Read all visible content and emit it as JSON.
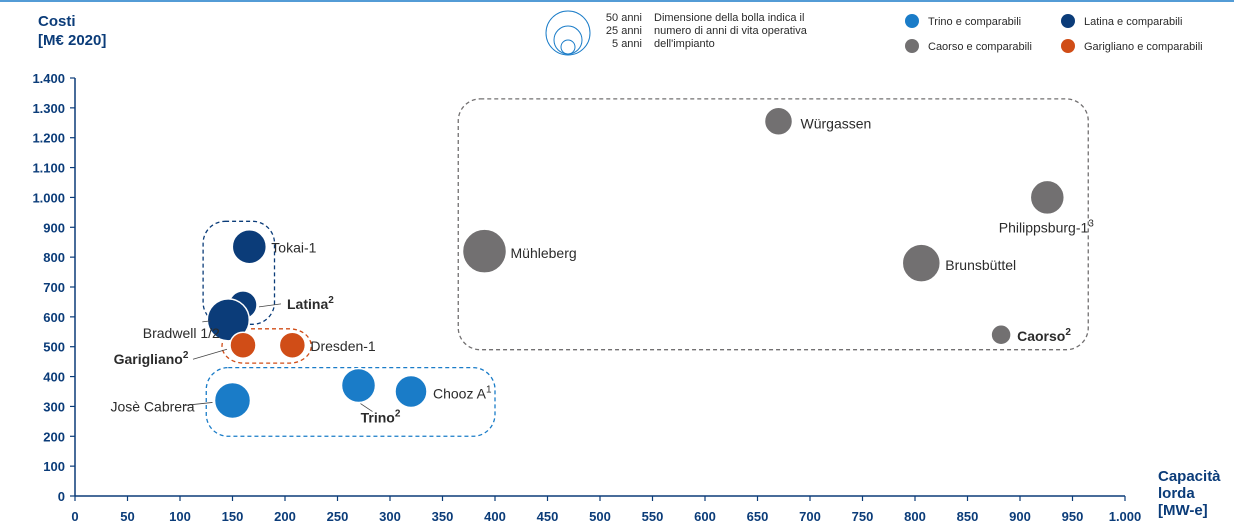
{
  "chart_data": {
    "type": "scatter",
    "title": "",
    "ylabel_line1": "Costi",
    "ylabel_line2": "[M€ 2020]",
    "xlabel_line1": "Capacità",
    "xlabel_line2": "lorda",
    "xlabel_line3": "[MW-e]",
    "xlim": [
      0,
      1000
    ],
    "ylim": [
      0,
      1400
    ],
    "x_ticks": [
      0,
      50,
      100,
      150,
      200,
      250,
      300,
      350,
      400,
      450,
      500,
      550,
      600,
      650,
      700,
      750,
      800,
      850,
      900,
      950,
      1000
    ],
    "x_tick_labels": [
      "0",
      "50",
      "100",
      "150",
      "200",
      "250",
      "300",
      "350",
      "400",
      "450",
      "500",
      "550",
      "600",
      "650",
      "700",
      "750",
      "800",
      "850",
      "900",
      "950",
      "1.000"
    ],
    "y_ticks": [
      0,
      100,
      200,
      300,
      400,
      500,
      600,
      700,
      800,
      900,
      1000,
      1100,
      1200,
      1300,
      1400
    ],
    "y_tick_labels": [
      "0",
      "100",
      "200",
      "300",
      "400",
      "500",
      "600",
      "700",
      "800",
      "900",
      "1.000",
      "1.100",
      "1.200",
      "1.300",
      "1.400"
    ],
    "size_legend": {
      "entries": [
        "50 anni",
        "25 anni",
        "5 anni"
      ],
      "note_lines": [
        "Dimensione della bolla indica il",
        "numero di anni di vita operativa",
        "dell'impianto"
      ]
    },
    "series": [
      {
        "name": "Trino e comparabili",
        "color": "#1a7cc8",
        "points": [
          {
            "label": "Josè Cabrera",
            "x": 150,
            "y": 320
          },
          {
            "label": "Trino",
            "sup": "2",
            "bold": true,
            "x": 270,
            "y": 370
          },
          {
            "label": "Chooz A",
            "sup": "1",
            "x": 320,
            "y": 350
          }
        ]
      },
      {
        "name": "Latina e comparabili",
        "color": "#0b3c79",
        "points": [
          {
            "label": "Tokai-1",
            "x": 166,
            "y": 835
          },
          {
            "label": "Latina",
            "sup": "2",
            "bold": true,
            "x": 160,
            "y": 640
          },
          {
            "label": "Bradwell 1/2",
            "x": 146,
            "y": 590
          }
        ]
      },
      {
        "name": "Caorso e comparabili",
        "color": "#727071",
        "points": [
          {
            "label": "Würgassen",
            "x": 670,
            "y": 1255
          },
          {
            "label": "Philippsburg-1",
            "sup": "3",
            "x": 926,
            "y": 1000
          },
          {
            "label": "Mühleberg",
            "x": 390,
            "y": 820
          },
          {
            "label": "Brunsbüttel",
            "x": 806,
            "y": 780
          },
          {
            "label": "Caorso",
            "sup": "2",
            "bold": true,
            "x": 882,
            "y": 540
          }
        ]
      },
      {
        "name": "Garigliano e comparabili",
        "color": "#d04d17",
        "points": [
          {
            "label": "Garigliano",
            "sup": "2",
            "bold": true,
            "x": 160,
            "y": 505
          },
          {
            "label": "Dresden-1",
            "x": 207,
            "y": 505
          }
        ]
      }
    ]
  }
}
